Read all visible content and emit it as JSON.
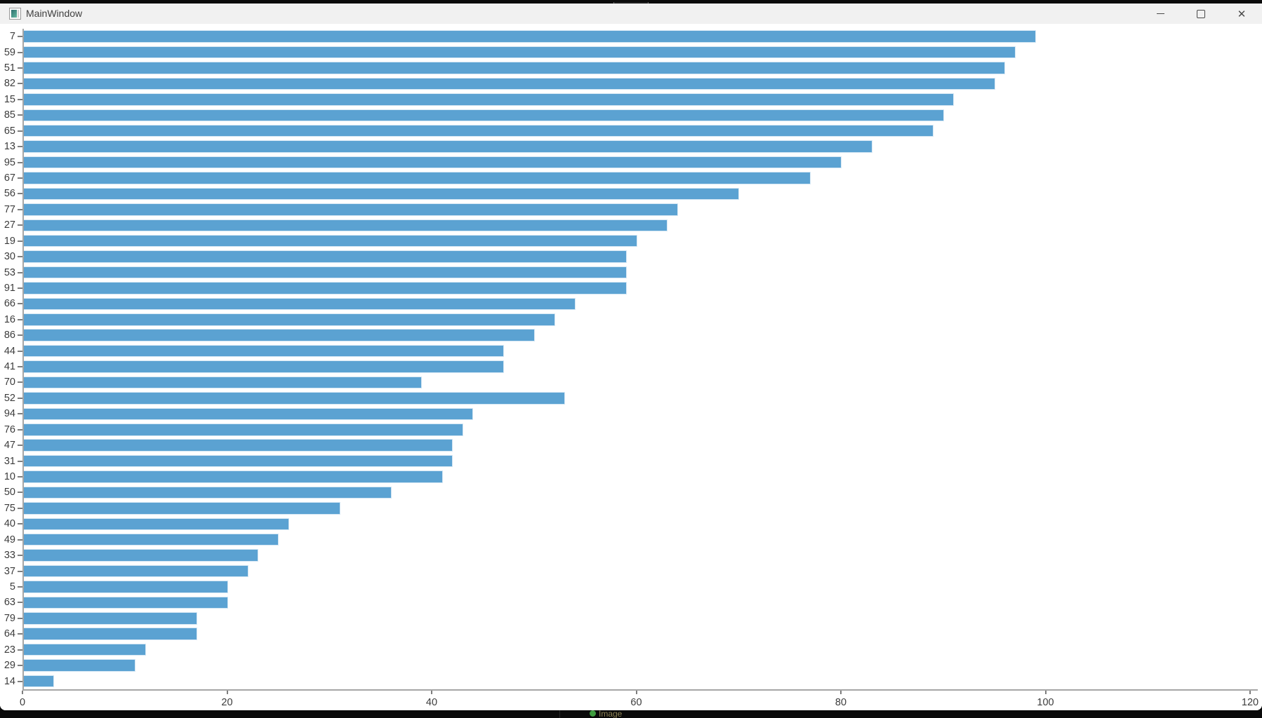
{
  "window": {
    "title": "MainWindow",
    "controls": {
      "close_glyph": "✕"
    }
  },
  "taskbar": {
    "app_label": "Image"
  },
  "chart_data": {
    "type": "bar",
    "orientation": "horizontal",
    "title": "",
    "xlabel": "",
    "ylabel": "",
    "xlim": [
      0,
      120
    ],
    "x_ticks": [
      "0",
      "20",
      "40",
      "60",
      "80",
      "100",
      "120"
    ],
    "grid": false,
    "legend": null,
    "bar_color": "#5ba2d2",
    "categories": [
      "7",
      "59",
      "51",
      "82",
      "15",
      "85",
      "65",
      "13",
      "95",
      "67",
      "56",
      "77",
      "27",
      "19",
      "30",
      "53",
      "91",
      "66",
      "16",
      "86",
      "44",
      "41",
      "70",
      "52",
      "94",
      "76",
      "47",
      "31",
      "10",
      "50",
      "75",
      "40",
      "49",
      "33",
      "37",
      "5",
      "63",
      "79",
      "64",
      "23",
      "29",
      "14"
    ],
    "values": [
      99,
      97,
      96,
      95,
      91,
      90,
      89,
      83,
      80,
      77,
      70,
      64,
      63,
      60,
      59,
      59,
      59,
      54,
      52,
      50,
      47,
      47,
      39,
      53,
      44,
      43,
      42,
      42,
      41,
      36,
      31,
      26,
      25,
      23,
      22,
      20,
      20,
      17,
      17,
      12,
      11,
      3
    ]
  }
}
